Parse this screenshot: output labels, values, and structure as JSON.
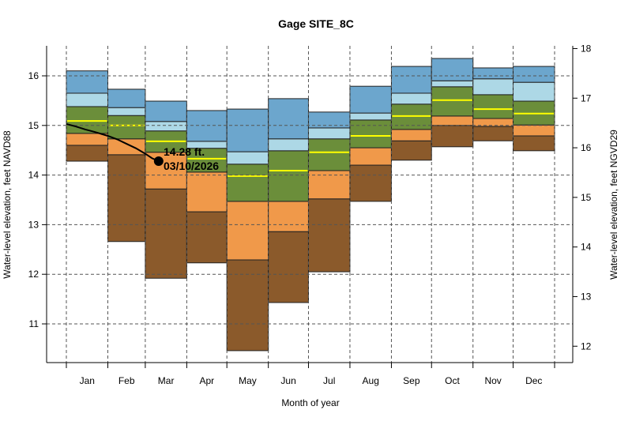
{
  "chart_data": {
    "type": "area",
    "title": "Gage SITE_8C",
    "xlabel": "Month of year",
    "ylabel": "Water-level elevation, feet NAVD88",
    "ylabel_right": "Water-level elevation, feet NGVD29",
    "right_axis_offset": 1.45,
    "ylim": [
      10.2,
      16.6
    ],
    "yticks": [
      11,
      12,
      13,
      14,
      15,
      16
    ],
    "yticks_right": [
      12,
      13,
      14,
      15,
      16,
      17,
      18
    ],
    "grid": true,
    "months": [
      "Jan",
      "Feb",
      "Mar",
      "Apr",
      "May",
      "Jun",
      "Jul",
      "Aug",
      "Sep",
      "Oct",
      "Nov",
      "Dec"
    ],
    "band_colors": {
      "min_10": "#8B5A2B",
      "10_25": "#F0994A",
      "25_75": "#6B8E3A",
      "75_90": "#ADD8E6",
      "90_max": "#6CA6CD",
      "median": "#FFFF00"
    },
    "percentiles": {
      "min": [
        14.28,
        12.66,
        11.92,
        12.23,
        10.46,
        11.43,
        12.05,
        13.47,
        14.3,
        14.57,
        14.69,
        14.49
      ],
      "p10": [
        14.6,
        14.41,
        13.72,
        13.26,
        12.29,
        12.86,
        13.52,
        14.2,
        14.69,
        15.0,
        14.98,
        14.79
      ],
      "p25": [
        14.84,
        14.73,
        14.46,
        14.06,
        13.47,
        13.47,
        14.09,
        14.55,
        14.92,
        15.19,
        15.14,
        15.01
      ],
      "median": [
        15.09,
        15.0,
        14.68,
        14.33,
        13.98,
        14.09,
        14.46,
        14.79,
        15.19,
        15.51,
        15.33,
        15.24
      ],
      "p75": [
        15.38,
        15.2,
        14.89,
        14.54,
        14.22,
        14.49,
        14.73,
        15.11,
        15.43,
        15.78,
        15.62,
        15.49
      ],
      "p90": [
        15.65,
        15.36,
        15.08,
        14.68,
        14.47,
        14.73,
        14.95,
        15.25,
        15.65,
        15.9,
        15.94,
        15.87
      ],
      "max": [
        16.1,
        15.73,
        15.49,
        15.3,
        15.33,
        15.54,
        15.27,
        15.79,
        16.19,
        16.35,
        16.16,
        16.19
      ]
    },
    "current_series": {
      "x_day_of_year": [
        0,
        7,
        14,
        21,
        31,
        38,
        45,
        52,
        59,
        64,
        69
      ],
      "values": [
        15.03,
        14.98,
        14.92,
        14.87,
        14.79,
        14.72,
        14.63,
        14.54,
        14.43,
        14.34,
        14.28
      ]
    },
    "annotation": {
      "value_label": "14.28 ft.",
      "date_label": "03/10/2026"
    }
  }
}
